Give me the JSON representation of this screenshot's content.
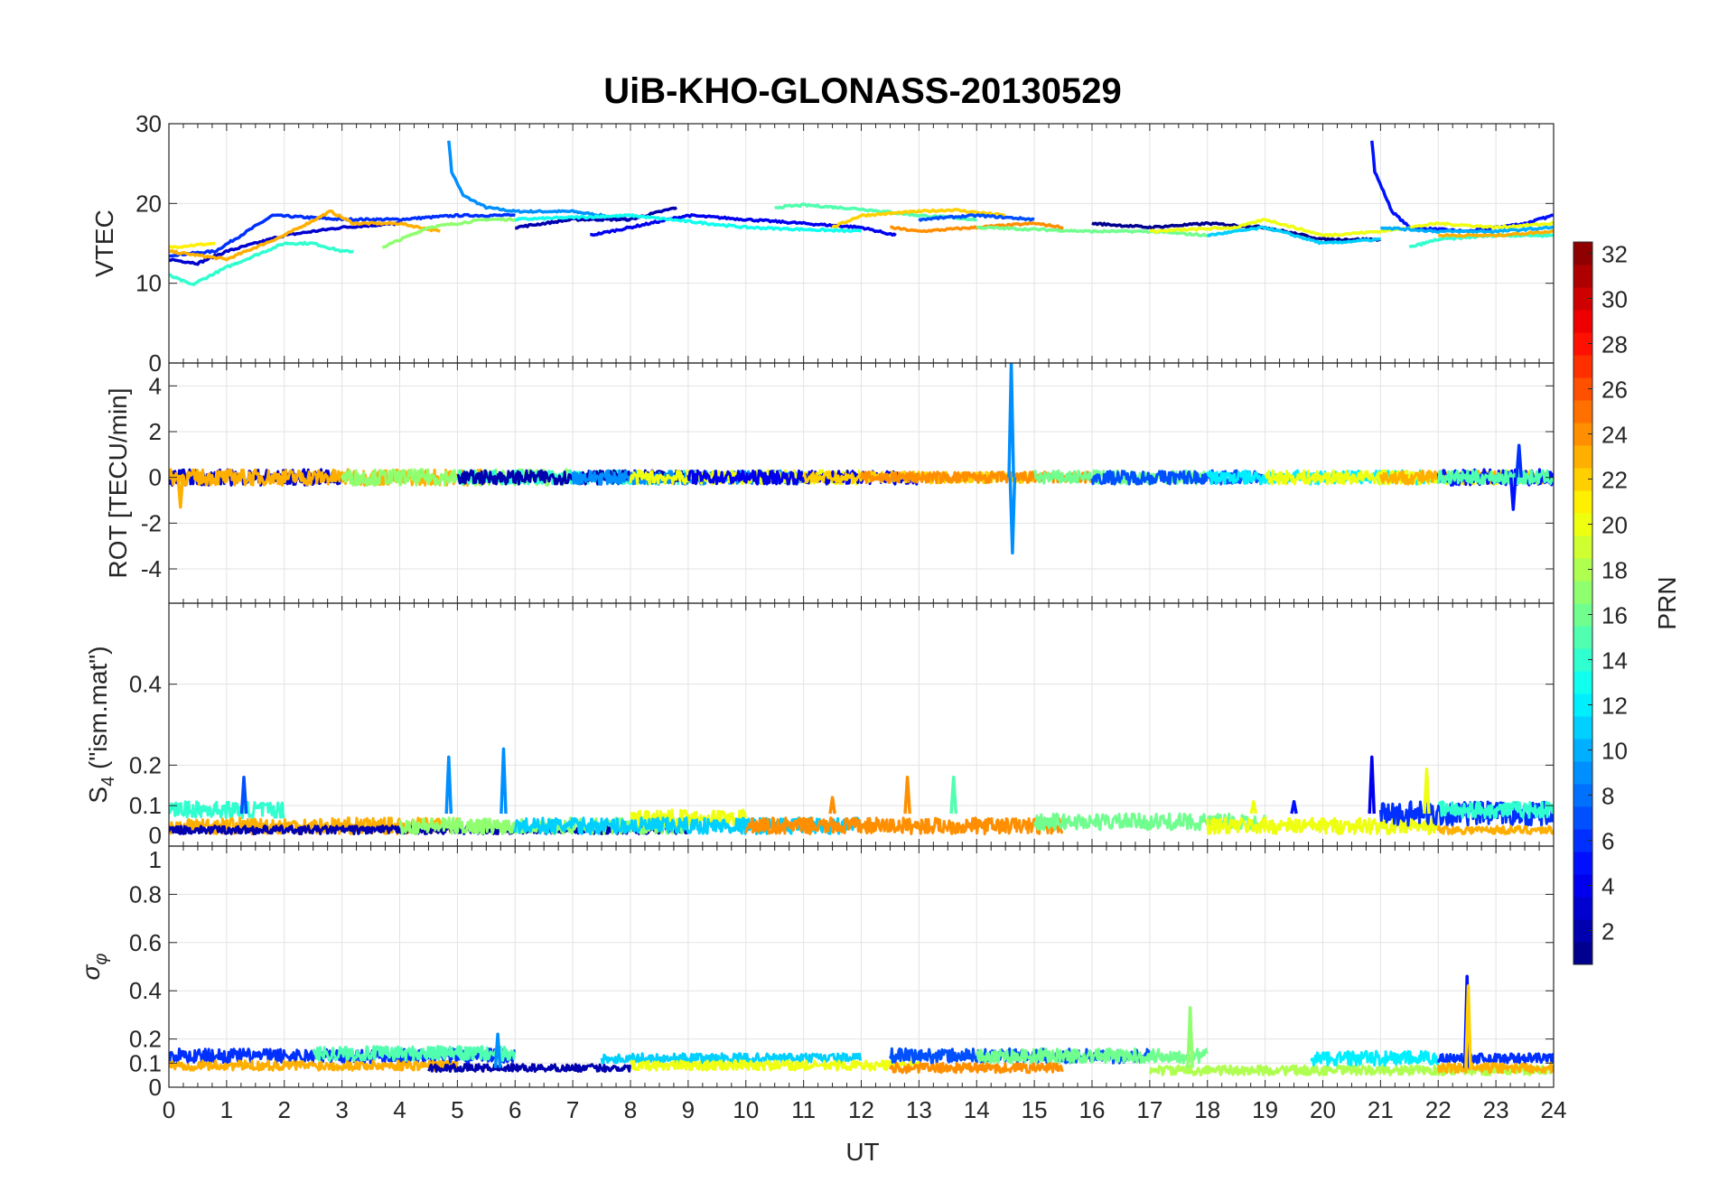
{
  "chart_data": {
    "type": "line",
    "title": "UiB-KHO-GLONASS-20130529",
    "xlabel": "UT",
    "xlim": [
      0,
      24
    ],
    "xticks": [
      0,
      1,
      2,
      3,
      4,
      5,
      6,
      7,
      8,
      9,
      10,
      11,
      12,
      13,
      14,
      15,
      16,
      17,
      18,
      19,
      20,
      21,
      22,
      23,
      24
    ],
    "grid": true,
    "colorbar": {
      "label": "PRN",
      "range": [
        1,
        32
      ],
      "levels": 32,
      "colormap": "jet",
      "ticks": [
        2,
        4,
        6,
        8,
        10,
        12,
        14,
        16,
        18,
        20,
        22,
        24,
        26,
        28,
        30,
        32
      ],
      "placement": "right"
    },
    "panels": [
      {
        "id": "vtec",
        "ylabel": "VTEC",
        "ylim": [
          0,
          30
        ],
        "yticks": [
          0,
          10,
          20,
          30
        ],
        "noise": 0.25,
        "traces": [
          {
            "prn": 9,
            "points": [
              [
                4.85,
                28
              ],
              [
                4.9,
                24
              ],
              [
                5.1,
                21
              ],
              [
                5.5,
                19.5
              ],
              [
                6,
                19
              ],
              [
                7,
                19
              ],
              [
                8,
                18
              ]
            ]
          },
          {
            "prn": 5,
            "points": [
              [
                20.85,
                28
              ],
              [
                20.9,
                24
              ],
              [
                21.2,
                19
              ],
              [
                21.5,
                17
              ],
              [
                22.5,
                16.5
              ],
              [
                23.5,
                17.5
              ],
              [
                24,
                18.5
              ]
            ]
          },
          {
            "prn": 6,
            "points": [
              [
                0,
                13.5
              ],
              [
                0.8,
                14
              ],
              [
                1.8,
                18.5
              ],
              [
                3,
                18
              ],
              [
                4,
                18
              ],
              [
                5,
                18.5
              ],
              [
                6,
                18.5
              ]
            ]
          },
          {
            "prn": 3,
            "points": [
              [
                0,
                13
              ],
              [
                0.5,
                12.5
              ],
              [
                1,
                14
              ],
              [
                2,
                16
              ],
              [
                3,
                17
              ],
              [
                4,
                17.5
              ]
            ]
          },
          {
            "prn": 23,
            "points": [
              [
                0,
                14
              ],
              [
                1,
                13
              ],
              [
                2,
                16
              ],
              [
                2.8,
                19
              ],
              [
                3.2,
                17.5
              ],
              [
                4,
                17.5
              ],
              [
                4.7,
                16.5
              ]
            ]
          },
          {
            "prn": 21,
            "points": [
              [
                0,
                14.5
              ],
              [
                0.8,
                15
              ]
            ]
          },
          {
            "prn": 14,
            "points": [
              [
                0,
                11
              ],
              [
                0.4,
                9.8
              ],
              [
                1,
                12
              ],
              [
                2,
                15
              ],
              [
                2.5,
                15
              ],
              [
                3,
                14
              ],
              [
                3.2,
                14
              ]
            ]
          },
          {
            "prn": 17,
            "points": [
              [
                3.7,
                14.5
              ],
              [
                4.5,
                17
              ],
              [
                5.5,
                18
              ],
              [
                6,
                18
              ]
            ]
          },
          {
            "prn": 2,
            "points": [
              [
                6,
                17
              ],
              [
                7,
                18
              ],
              [
                8,
                18
              ],
              [
                8.8,
                19.5
              ]
            ]
          },
          {
            "prn": 4,
            "points": [
              [
                7.3,
                16
              ],
              [
                8,
                17
              ],
              [
                9,
                18.5
              ],
              [
                10,
                18
              ],
              [
                11,
                17.5
              ],
              [
                12,
                17
              ],
              [
                12.6,
                16
              ]
            ]
          },
          {
            "prn": 13,
            "points": [
              [
                6,
                18
              ],
              [
                8,
                18.5
              ],
              [
                10,
                17
              ],
              [
                12,
                16.5
              ]
            ]
          },
          {
            "prn": 15,
            "points": [
              [
                10.5,
                19.5
              ],
              [
                11,
                19.8
              ],
              [
                12,
                19.3
              ],
              [
                13,
                18.5
              ],
              [
                14,
                18
              ]
            ]
          },
          {
            "prn": 22,
            "points": [
              [
                11.5,
                17
              ],
              [
                12,
                18.5
              ],
              [
                13,
                19
              ],
              [
                13.6,
                19.2
              ],
              [
                14.5,
                18.5
              ]
            ]
          },
          {
            "prn": 24,
            "points": [
              [
                12.5,
                17
              ],
              [
                13,
                16.5
              ],
              [
                14,
                17
              ],
              [
                15,
                17.5
              ],
              [
                15.5,
                17
              ]
            ]
          },
          {
            "prn": 7,
            "points": [
              [
                13,
                18
              ],
              [
                14,
                18.5
              ],
              [
                15,
                18
              ]
            ]
          },
          {
            "prn": 16,
            "points": [
              [
                14,
                17
              ],
              [
                16,
                16.5
              ],
              [
                17,
                16.5
              ],
              [
                18,
                16
              ]
            ]
          },
          {
            "prn": 1,
            "points": [
              [
                16,
                17.5
              ],
              [
                17,
                17
              ],
              [
                18,
                17.5
              ],
              [
                19,
                17
              ],
              [
                20,
                15.5
              ],
              [
                21,
                15.5
              ]
            ]
          },
          {
            "prn": 20,
            "points": [
              [
                17,
                16.5
              ],
              [
                18.5,
                17
              ],
              [
                19,
                18
              ],
              [
                20,
                16
              ],
              [
                21,
                16.5
              ],
              [
                22,
                17.5
              ],
              [
                23,
                17
              ],
              [
                24,
                17.5
              ]
            ]
          },
          {
            "prn": 11,
            "points": [
              [
                18,
                16
              ],
              [
                19,
                17
              ],
              [
                20,
                15
              ],
              [
                21,
                15.5
              ]
            ]
          },
          {
            "prn": 14,
            "points": [
              [
                21.5,
                14.5
              ],
              [
                22,
                15.5
              ],
              [
                23,
                16
              ],
              [
                24,
                16
              ]
            ]
          },
          {
            "prn": 23,
            "points": [
              [
                22,
                16
              ],
              [
                23,
                16
              ],
              [
                24,
                16.5
              ]
            ]
          },
          {
            "prn": 10,
            "points": [
              [
                21,
                17
              ],
              [
                22,
                16.5
              ],
              [
                23,
                16.5
              ],
              [
                24,
                17
              ]
            ]
          }
        ]
      },
      {
        "id": "rot",
        "ylabel": "ROT [TECU/min]",
        "ylim": [
          -5.5,
          5
        ],
        "yticks": [
          -4,
          -2,
          0,
          2,
          4
        ],
        "bands": [
          [
            3,
            0,
            3,
            0.35
          ],
          [
            23,
            0,
            5.5,
            0.35
          ],
          [
            17,
            3,
            7,
            0.35
          ],
          [
            14,
            5,
            9,
            0.3
          ],
          [
            2,
            5,
            9,
            0.3
          ],
          [
            9,
            7,
            11,
            0.3
          ],
          [
            20,
            8,
            12,
            0.3
          ],
          [
            4,
            9,
            13,
            0.3
          ],
          [
            22,
            11,
            15,
            0.25
          ],
          [
            24,
            12,
            16,
            0.25
          ],
          [
            16,
            15,
            18,
            0.3
          ],
          [
            7,
            16,
            19,
            0.3
          ],
          [
            12,
            18,
            22,
            0.3
          ],
          [
            20,
            19,
            24,
            0.3
          ],
          [
            23,
            21,
            24,
            0.3
          ],
          [
            5,
            22,
            24,
            0.35
          ],
          [
            15,
            22,
            24,
            0.3
          ]
        ],
        "spikes": [
          [
            9,
            14.6,
            5
          ],
          [
            9,
            14.62,
            -3.3
          ],
          [
            5,
            23.3,
            -1.4
          ],
          [
            6,
            23.4,
            1.4
          ],
          [
            23,
            0.2,
            -1.3
          ]
        ]
      },
      {
        "id": "s4",
        "ylabel": "S4 (\"ism.mat\")",
        "ylim": [
          0,
          0.6
        ],
        "yticks": [
          0,
          0.1,
          0.2,
          0.4
        ],
        "bands": [
          [
            14,
            0,
            2,
            0.09,
            0.02
          ],
          [
            23,
            0,
            5,
            0.05,
            0.02
          ],
          [
            2,
            0,
            9,
            0.04,
            0.01
          ],
          [
            17,
            4,
            9,
            0.05,
            0.02
          ],
          [
            20,
            8,
            10,
            0.07,
            0.02
          ],
          [
            11,
            6,
            12,
            0.05,
            0.02
          ],
          [
            24,
            10,
            15.5,
            0.05,
            0.02
          ],
          [
            16,
            15,
            19,
            0.06,
            0.02
          ],
          [
            20,
            18,
            22,
            0.05,
            0.02
          ],
          [
            6,
            21,
            24,
            0.08,
            0.03
          ],
          [
            14,
            22,
            24,
            0.09,
            0.02
          ],
          [
            23,
            22,
            24,
            0.04,
            0.01
          ]
        ],
        "spikes": [
          [
            7,
            1.3,
            0.17
          ],
          [
            9,
            4.85,
            0.22
          ],
          [
            9,
            5.8,
            0.24
          ],
          [
            24,
            11.5,
            0.12
          ],
          [
            24,
            12.8,
            0.17
          ],
          [
            15,
            13.6,
            0.17
          ],
          [
            20,
            18.8,
            0.11
          ],
          [
            5,
            19.5,
            0.11
          ],
          [
            4,
            20.85,
            0.22
          ],
          [
            20,
            21.8,
            0.19
          ]
        ]
      },
      {
        "id": "sigma_phi",
        "ylabel": "σφ",
        "ylim": [
          0,
          1
        ],
        "yticks": [
          0,
          0.1,
          0.2,
          0.4,
          0.6,
          0.8,
          1
        ],
        "bands": [
          [
            6,
            0,
            6,
            0.13,
            0.03
          ],
          [
            15,
            2.5,
            6,
            0.14,
            0.03
          ],
          [
            23,
            0,
            5,
            0.09,
            0.02
          ],
          [
            2,
            4.5,
            8,
            0.08,
            0.015
          ],
          [
            11,
            7.5,
            12,
            0.12,
            0.02
          ],
          [
            20,
            8,
            13,
            0.09,
            0.02
          ],
          [
            7,
            12.5,
            17,
            0.13,
            0.03
          ],
          [
            16,
            14,
            18,
            0.13,
            0.03
          ],
          [
            24,
            12.5,
            15.5,
            0.08,
            0.02
          ],
          [
            18,
            17,
            24,
            0.07,
            0.02
          ],
          [
            12,
            19.8,
            22,
            0.12,
            0.03
          ],
          [
            6,
            22,
            24,
            0.12,
            0.02
          ],
          [
            23,
            22,
            24,
            0.08,
            0.02
          ]
        ],
        "spikes": [
          [
            17,
            17.7,
            0.33
          ],
          [
            5,
            22.5,
            0.46
          ],
          [
            22,
            22.52,
            0.42
          ],
          [
            9,
            5.7,
            0.22
          ]
        ]
      }
    ]
  }
}
